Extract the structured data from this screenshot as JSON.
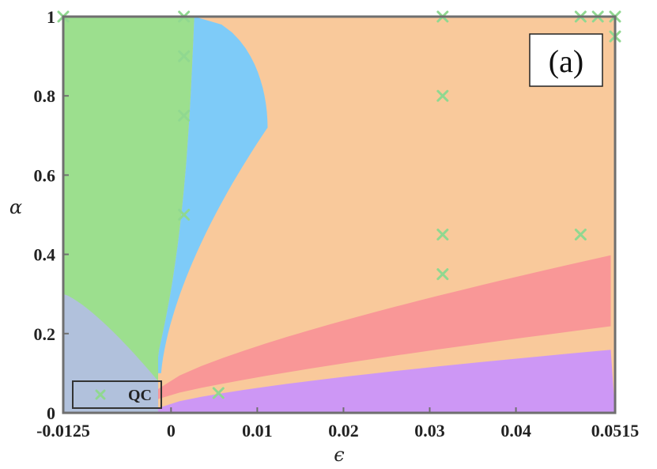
{
  "chart_data": {
    "type": "scatter",
    "title": "",
    "panel_label": "(a)",
    "xlabel": "ϵ",
    "ylabel": "α",
    "xlim": [
      -0.0125,
      0.0515
    ],
    "ylim": [
      0,
      1
    ],
    "x_ticks": [
      -0.0125,
      0,
      0.01,
      0.02,
      0.03,
      0.04,
      0.0515
    ],
    "x_tick_labels": [
      "-0.0125",
      "0",
      "0.01",
      "0.02",
      "0.03",
      "0.04",
      "0.0515"
    ],
    "y_ticks": [
      0,
      0.2,
      0.4,
      0.6,
      0.8,
      1
    ],
    "y_tick_labels": [
      "0",
      "0.2",
      "0.4",
      "0.6",
      "0.8",
      "1"
    ],
    "grid": false,
    "legend_placement": "bottom-left",
    "legend": [
      {
        "name": "QC",
        "marker": "x",
        "color": "#90d890"
      }
    ],
    "regions": [
      {
        "color": "#f9c99b"
      },
      {
        "color": "#9cdf8e"
      },
      {
        "color": "#7ecbf8"
      },
      {
        "color": "#b1c1dc"
      },
      {
        "color": "#f99797"
      },
      {
        "color": "#cd97f5"
      }
    ],
    "series": [
      {
        "name": "QC",
        "marker": "x",
        "color": "#90d890",
        "points": [
          {
            "x": -0.0125,
            "y": 1.0
          },
          {
            "x": 0.0015,
            "y": 1.0
          },
          {
            "x": 0.0315,
            "y": 1.0
          },
          {
            "x": 0.0475,
            "y": 1.0
          },
          {
            "x": 0.0495,
            "y": 1.0
          },
          {
            "x": 0.0515,
            "y": 1.0
          },
          {
            "x": 0.0515,
            "y": 0.95
          },
          {
            "x": 0.0015,
            "y": 0.9
          },
          {
            "x": 0.0315,
            "y": 0.8
          },
          {
            "x": 0.0015,
            "y": 0.75
          },
          {
            "x": 0.0015,
            "y": 0.5
          },
          {
            "x": 0.0315,
            "y": 0.45
          },
          {
            "x": 0.0475,
            "y": 0.45
          },
          {
            "x": 0.0315,
            "y": 0.35
          },
          {
            "x": 0.0055,
            "y": 0.05
          }
        ]
      }
    ]
  }
}
